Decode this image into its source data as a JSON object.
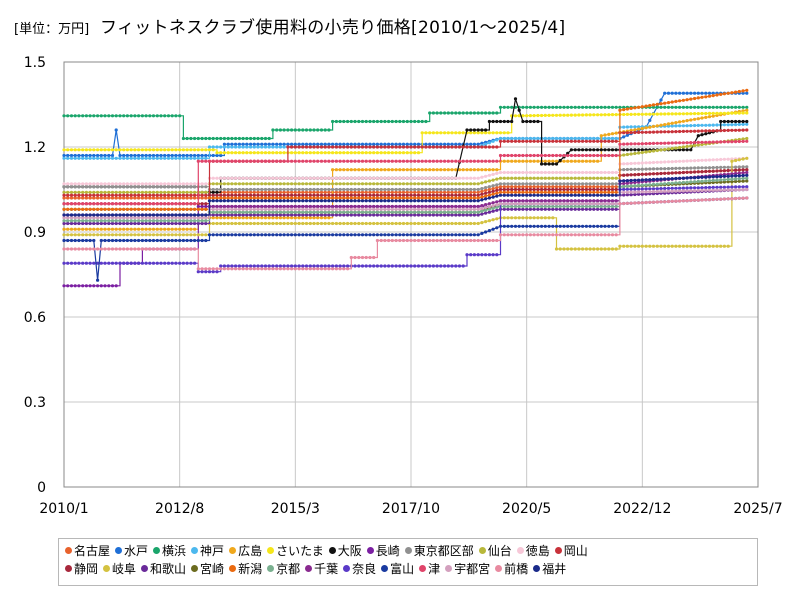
{
  "chart_data": {
    "type": "line",
    "unit_label": "[単位：万円]",
    "title": "フィットネスクラブ使用料の小売り価格[2010/1～2025/4]",
    "x_ticks": [
      "2010/1",
      "2012/8",
      "2015/3",
      "2017/10",
      "2020/5",
      "2022/12",
      "2025/7"
    ],
    "y_ticks": [
      "0",
      "0.3",
      "0.6",
      "0.9",
      "1.2",
      "1.5"
    ],
    "ylim": [
      0,
      1.5
    ],
    "xlim": [
      "2010/1",
      "2025/7"
    ],
    "grid": true,
    "legend_position": "bottom",
    "legend_rows": [
      [
        "名古屋",
        "水戸",
        "横浜",
        "神戸",
        "広島",
        "さいたま",
        "大阪",
        "長崎",
        "東京都区部",
        "仙台",
        "徳島",
        "岡山"
      ],
      [
        "静岡",
        "岐阜",
        "和歌山",
        "宮崎",
        "新潟",
        "京都",
        "千葉",
        "奈良",
        "富山",
        "津",
        "宇都宮",
        "前橋",
        "福井"
      ]
    ],
    "series": [
      {
        "name": "名古屋",
        "color": "#e8622c",
        "points": [
          [
            "2010/1",
            1.02
          ],
          [
            "2013/4",
            1.02
          ],
          [
            "2013/4",
            1.04
          ],
          [
            "2019/4",
            1.04
          ],
          [
            "2019/10",
            1.06
          ],
          [
            "2022/6",
            1.06
          ],
          [
            "2022/6",
            1.1
          ],
          [
            "2025/4",
            1.12
          ]
        ]
      },
      {
        "name": "水戸",
        "color": "#1f6fd6",
        "points": [
          [
            "2010/1",
            1.17
          ],
          [
            "2011/2",
            1.17
          ],
          [
            "2011/3",
            1.26
          ],
          [
            "2011/4",
            1.17
          ],
          [
            "2013/8",
            1.17
          ],
          [
            "2013/8",
            1.21
          ],
          [
            "2019/4",
            1.21
          ],
          [
            "2019/10",
            1.23
          ],
          [
            "2022/6",
            1.23
          ],
          [
            "2023/1",
            1.27
          ],
          [
            "2023/6",
            1.39
          ],
          [
            "2025/4",
            1.39
          ]
        ]
      },
      {
        "name": "横浜",
        "color": "#1aa56b",
        "points": [
          [
            "2010/1",
            1.31
          ],
          [
            "2012/9",
            1.31
          ],
          [
            "2012/9",
            1.23
          ],
          [
            "2014/9",
            1.23
          ],
          [
            "2014/9",
            1.26
          ],
          [
            "2016/1",
            1.26
          ],
          [
            "2016/1",
            1.29
          ],
          [
            "2018/3",
            1.29
          ],
          [
            "2018/3",
            1.32
          ],
          [
            "2019/10",
            1.32
          ],
          [
            "2019/10",
            1.34
          ],
          [
            "2025/4",
            1.34
          ]
        ]
      },
      {
        "name": "神戸",
        "color": "#4cb8ee",
        "points": [
          [
            "2010/1",
            1.16
          ],
          [
            "2013/4",
            1.16
          ],
          [
            "2013/4",
            1.2
          ],
          [
            "2019/4",
            1.2
          ],
          [
            "2019/10",
            1.23
          ],
          [
            "2022/6",
            1.23
          ],
          [
            "2022/6",
            1.27
          ],
          [
            "2025/4",
            1.28
          ]
        ]
      },
      {
        "name": "広島",
        "color": "#f0a81c",
        "points": [
          [
            "2010/1",
            0.91
          ],
          [
            "2013/1",
            0.91
          ],
          [
            "2013/1",
            0.95
          ],
          [
            "2016/1",
            0.95
          ],
          [
            "2016/1",
            1.12
          ],
          [
            "2019/10",
            1.12
          ],
          [
            "2019/10",
            1.15
          ],
          [
            "2022/1",
            1.15
          ],
          [
            "2022/1",
            1.24
          ],
          [
            "2025/4",
            1.33
          ]
        ]
      },
      {
        "name": "さいたま",
        "color": "#f5e61a",
        "points": [
          [
            "2010/1",
            1.19
          ],
          [
            "2013/6",
            1.19
          ],
          [
            "2013/6",
            1.18
          ],
          [
            "2018/1",
            1.18
          ],
          [
            "2018/1",
            1.25
          ],
          [
            "2020/1",
            1.25
          ],
          [
            "2020/1",
            1.31
          ],
          [
            "2025/4",
            1.32
          ]
        ]
      },
      {
        "name": "大阪",
        "color": "#111111",
        "points": [
          [
            "2010/1",
            1.06
          ],
          [
            "2013/1",
            1.06
          ],
          [
            "2013/1",
            1.04
          ],
          [
            "2013/7",
            1.04
          ],
          [
            "2013/7",
            1.09
          ],
          [
            "2018/10",
            1.09
          ],
          [
            "2019/1",
            1.26
          ],
          [
            "2019/7",
            1.26
          ],
          [
            "2019/7",
            1.29
          ],
          [
            "2020/1",
            1.29
          ],
          [
            "2020/2",
            1.37
          ],
          [
            "2020/4",
            1.29
          ],
          [
            "2020/9",
            1.29
          ],
          [
            "2020/9",
            1.14
          ],
          [
            "2021/1",
            1.14
          ],
          [
            "2021/5",
            1.19
          ],
          [
            "2024/1",
            1.19
          ],
          [
            "2024/3",
            1.24
          ],
          [
            "2024/9",
            1.26
          ],
          [
            "2024/9",
            1.29
          ],
          [
            "2025/4",
            1.29
          ]
        ]
      },
      {
        "name": "長崎",
        "color": "#7b1fa2",
        "points": [
          [
            "2010/1",
            0.71
          ],
          [
            "2011/4",
            0.71
          ],
          [
            "2011/4",
            0.79
          ],
          [
            "2011/10",
            0.79
          ],
          [
            "2011/10",
            0.84
          ],
          [
            "2013/1",
            0.84
          ],
          [
            "2013/1",
            0.99
          ],
          [
            "2019/10",
            0.99
          ],
          [
            "2019/10",
            1.01
          ],
          [
            "2022/6",
            1.01
          ],
          [
            "2022/6",
            1.08
          ],
          [
            "2025/4",
            1.1
          ]
        ]
      },
      {
        "name": "東京都区部",
        "color": "#909090",
        "points": [
          [
            "2010/1",
            1.06
          ],
          [
            "2013/4",
            1.06
          ],
          [
            "2013/4",
            1.05
          ],
          [
            "2019/4",
            1.05
          ],
          [
            "2019/10",
            1.07
          ],
          [
            "2022/6",
            1.07
          ],
          [
            "2022/6",
            1.12
          ],
          [
            "2025/4",
            1.13
          ]
        ]
      },
      {
        "name": "仙台",
        "color": "#b8b83a",
        "points": [
          [
            "2010/1",
            1.04
          ],
          [
            "2013/4",
            1.04
          ],
          [
            "2013/4",
            1.07
          ],
          [
            "2019/4",
            1.07
          ],
          [
            "2019/10",
            1.09
          ],
          [
            "2022/6",
            1.09
          ],
          [
            "2022/6",
            1.17
          ],
          [
            "2025/4",
            1.23
          ]
        ]
      },
      {
        "name": "徳島",
        "color": "#f7c8d8",
        "points": [
          [
            "2010/1",
            1.07
          ],
          [
            "2013/4",
            1.07
          ],
          [
            "2013/4",
            1.09
          ],
          [
            "2019/4",
            1.09
          ],
          [
            "2019/10",
            1.11
          ],
          [
            "2022/6",
            1.11
          ],
          [
            "2022/6",
            1.14
          ],
          [
            "2025/4",
            1.16
          ]
        ]
      },
      {
        "name": "岡山",
        "color": "#c8323a",
        "points": [
          [
            "2010/1",
            1.03
          ],
          [
            "2013/4",
            1.03
          ],
          [
            "2013/4",
            1.15
          ],
          [
            "2015/1",
            1.15
          ],
          [
            "2015/1",
            1.2
          ],
          [
            "2019/10",
            1.2
          ],
          [
            "2019/10",
            1.22
          ],
          [
            "2022/6",
            1.22
          ],
          [
            "2022/6",
            1.25
          ],
          [
            "2025/4",
            1.26
          ]
        ]
      },
      {
        "name": "静岡",
        "color": "#a8283c",
        "points": [
          [
            "2010/1",
            1.0
          ],
          [
            "2013/4",
            1.0
          ],
          [
            "2013/4",
            1.03
          ],
          [
            "2019/4",
            1.03
          ],
          [
            "2019/10",
            1.05
          ],
          [
            "2022/6",
            1.05
          ],
          [
            "2022/6",
            1.1
          ],
          [
            "2025/4",
            1.12
          ]
        ]
      },
      {
        "name": "岐阜",
        "color": "#d4c240",
        "points": [
          [
            "2010/1",
            0.89
          ],
          [
            "2013/4",
            0.89
          ],
          [
            "2013/4",
            0.93
          ],
          [
            "2019/4",
            0.93
          ],
          [
            "2019/10",
            0.95
          ],
          [
            "2021/1",
            0.95
          ],
          [
            "2021/1",
            0.84
          ],
          [
            "2022/6",
            0.84
          ],
          [
            "2022/6",
            0.85
          ],
          [
            "2024/12",
            0.85
          ],
          [
            "2024/12",
            1.15
          ],
          [
            "2025/4",
            1.16
          ]
        ]
      },
      {
        "name": "和歌山",
        "color": "#6a2a9a",
        "points": [
          [
            "2010/1",
            0.93
          ],
          [
            "2013/4",
            0.93
          ],
          [
            "2013/4",
            0.96
          ],
          [
            "2019/4",
            0.96
          ],
          [
            "2019/10",
            0.98
          ],
          [
            "2022/6",
            0.98
          ],
          [
            "2022/6",
            1.03
          ],
          [
            "2025/4",
            1.05
          ]
        ]
      },
      {
        "name": "宮崎",
        "color": "#6b6b1f",
        "points": [
          [
            "2010/1",
            0.98
          ],
          [
            "2013/4",
            0.98
          ],
          [
            "2013/4",
            0.97
          ],
          [
            "2019/4",
            0.97
          ],
          [
            "2019/10",
            1.0
          ],
          [
            "2022/6",
            1.0
          ],
          [
            "2022/6",
            1.06
          ],
          [
            "2025/4",
            1.08
          ]
        ]
      },
      {
        "name": "新潟",
        "color": "#ea6a10",
        "points": [
          [
            "2010/1",
            0.98
          ],
          [
            "2013/4",
            0.98
          ],
          [
            "2013/4",
            1.02
          ],
          [
            "2019/4",
            1.02
          ],
          [
            "2019/10",
            1.04
          ],
          [
            "2022/6",
            1.04
          ],
          [
            "2022/6",
            1.33
          ],
          [
            "2025/4",
            1.4
          ]
        ]
      },
      {
        "name": "京都",
        "color": "#7ab090",
        "points": [
          [
            "2010/1",
            0.94
          ],
          [
            "2013/4",
            0.94
          ],
          [
            "2013/4",
            0.97
          ],
          [
            "2019/4",
            0.97
          ],
          [
            "2019/10",
            0.99
          ],
          [
            "2022/6",
            0.99
          ],
          [
            "2022/6",
            1.06
          ],
          [
            "2025/4",
            1.09
          ]
        ]
      },
      {
        "name": "千葉",
        "color": "#8a2a90",
        "points": [
          [
            "2010/1",
            0.96
          ],
          [
            "2013/4",
            0.96
          ],
          [
            "2013/4",
            0.99
          ],
          [
            "2019/4",
            0.99
          ],
          [
            "2019/10",
            1.01
          ],
          [
            "2022/6",
            1.01
          ],
          [
            "2022/6",
            1.07
          ],
          [
            "2025/4",
            1.11
          ]
        ]
      },
      {
        "name": "奈良",
        "color": "#5a3ac8",
        "points": [
          [
            "2010/1",
            0.79
          ],
          [
            "2013/1",
            0.79
          ],
          [
            "2013/1",
            0.76
          ],
          [
            "2013/7",
            0.76
          ],
          [
            "2013/7",
            0.78
          ],
          [
            "2019/1",
            0.78
          ],
          [
            "2019/1",
            0.82
          ],
          [
            "2019/10",
            0.82
          ],
          [
            "2019/10",
            1.0
          ],
          [
            "2022/6",
            1.0
          ],
          [
            "2022/6",
            1.05
          ],
          [
            "2025/4",
            1.06
          ]
        ]
      },
      {
        "name": "富山",
        "color": "#1a3aa0",
        "points": [
          [
            "2010/1",
            0.87
          ],
          [
            "2010/9",
            0.87
          ],
          [
            "2010/10",
            0.73
          ],
          [
            "2010/11",
            0.87
          ],
          [
            "2013/4",
            0.87
          ],
          [
            "2013/4",
            0.89
          ],
          [
            "2019/4",
            0.89
          ],
          [
            "2019/10",
            0.92
          ],
          [
            "2022/6",
            0.92
          ],
          [
            "2022/6",
            1.0
          ],
          [
            "2025/4",
            1.02
          ]
        ]
      },
      {
        "name": "津",
        "color": "#e0446a",
        "points": [
          [
            "2010/1",
            1.0
          ],
          [
            "2013/1",
            1.0
          ],
          [
            "2013/1",
            1.15
          ],
          [
            "2019/10",
            1.15
          ],
          [
            "2019/10",
            1.17
          ],
          [
            "2022/6",
            1.17
          ],
          [
            "2022/6",
            1.21
          ],
          [
            "2025/4",
            1.22
          ]
        ]
      },
      {
        "name": "宇都宮",
        "color": "#d3a0be",
        "points": [
          [
            "2010/1",
            0.95
          ],
          [
            "2013/4",
            0.95
          ],
          [
            "2013/4",
            0.98
          ],
          [
            "2019/4",
            0.98
          ],
          [
            "2019/10",
            1.0
          ],
          [
            "2022/6",
            1.0
          ],
          [
            "2022/6",
            1.04
          ],
          [
            "2025/4",
            1.05
          ]
        ]
      },
      {
        "name": "前橋",
        "color": "#e88aa0",
        "points": [
          [
            "2010/1",
            0.84
          ],
          [
            "2013/1",
            0.84
          ],
          [
            "2013/1",
            0.77
          ],
          [
            "2016/6",
            0.77
          ],
          [
            "2016/6",
            0.81
          ],
          [
            "2017/1",
            0.81
          ],
          [
            "2017/1",
            0.87
          ],
          [
            "2019/10",
            0.87
          ],
          [
            "2019/10",
            0.89
          ],
          [
            "2022/6",
            0.89
          ],
          [
            "2022/6",
            1.0
          ],
          [
            "2025/4",
            1.02
          ]
        ]
      },
      {
        "name": "福井",
        "color": "#1a2a8a",
        "points": [
          [
            "2010/1",
            0.96
          ],
          [
            "2013/4",
            0.96
          ],
          [
            "2013/4",
            1.01
          ],
          [
            "2019/4",
            1.01
          ],
          [
            "2019/10",
            1.03
          ],
          [
            "2022/6",
            1.03
          ],
          [
            "2022/6",
            1.08
          ],
          [
            "2025/4",
            1.1
          ]
        ]
      }
    ]
  }
}
